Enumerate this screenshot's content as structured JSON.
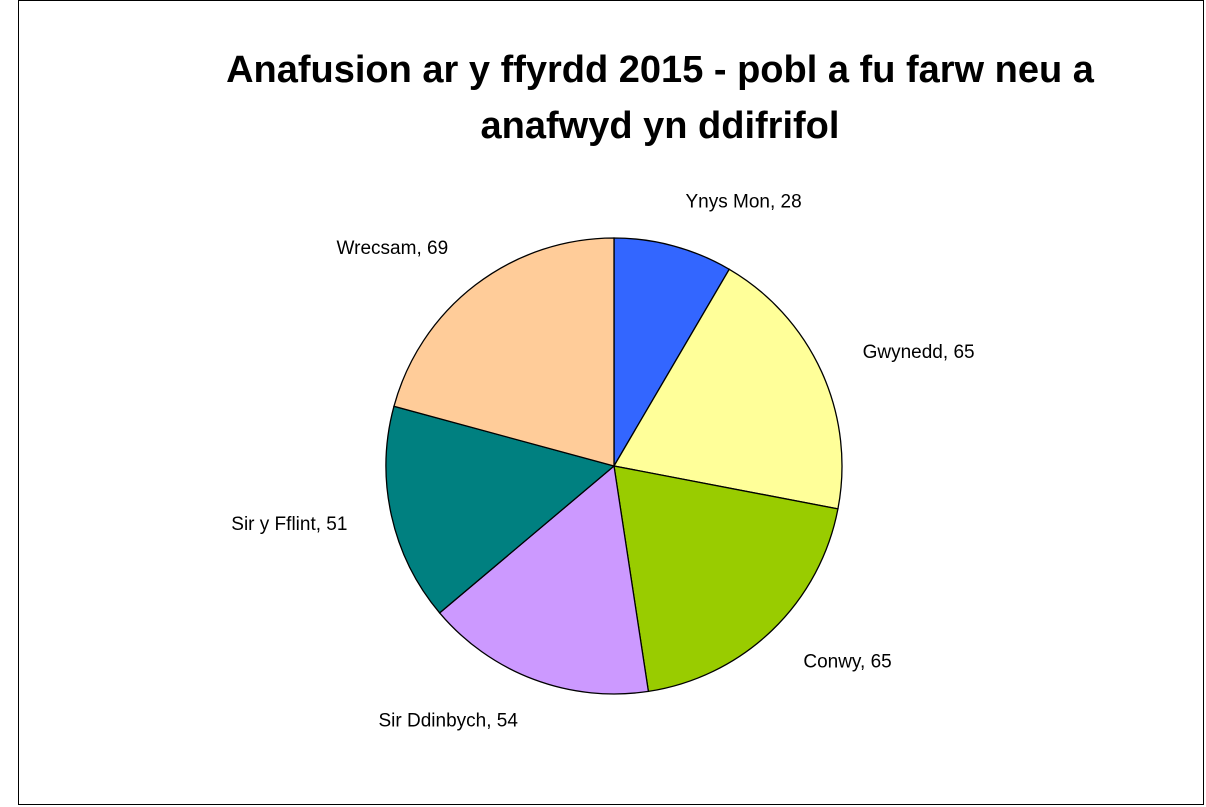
{
  "chart_data": {
    "type": "pie",
    "title": "Anafusion ar y ffyrdd 2015 - pobl a fu farw neu a anafwyd yn ddifrifol",
    "categories": [
      "Ynys Mon",
      "Gwynedd",
      "Conwy",
      "Sir Ddinbych",
      "Sir y Fflint",
      "Wrecsam"
    ],
    "values": [
      28,
      65,
      65,
      54,
      51,
      69
    ],
    "colors": [
      "#3366ff",
      "#ffff99",
      "#99cc00",
      "#cc99ff",
      "#008080",
      "#ffcc99"
    ]
  }
}
